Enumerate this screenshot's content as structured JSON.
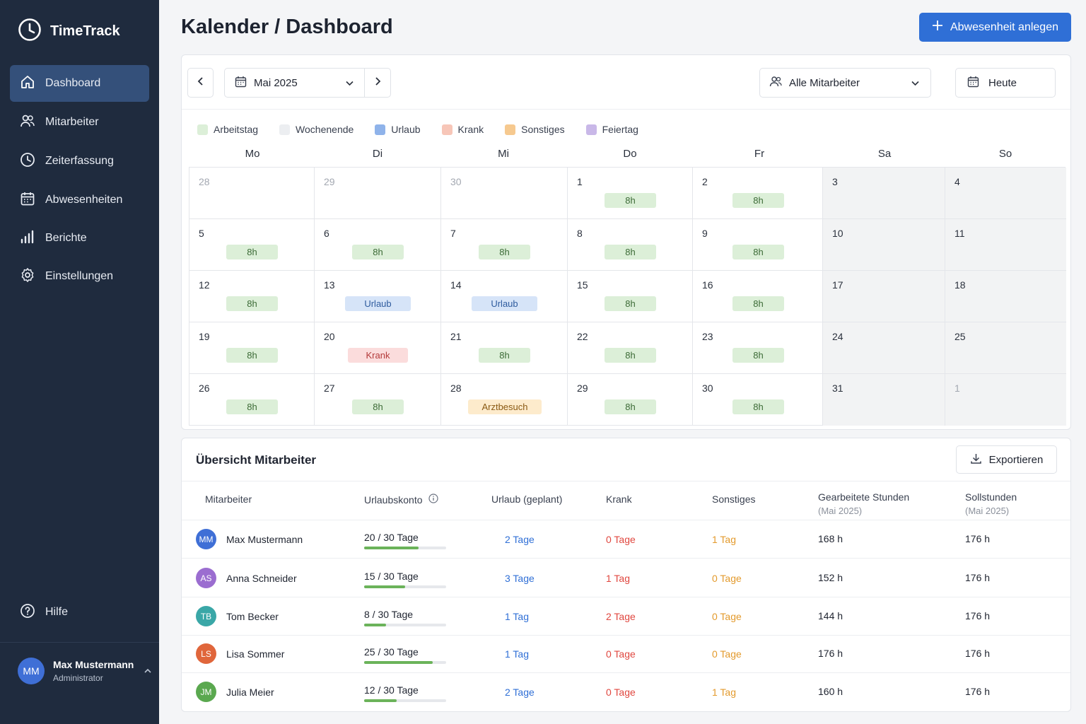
{
  "app": {
    "name": "TimeTrack"
  },
  "sidebar": {
    "items": [
      {
        "label": "Dashboard",
        "icon": "home-icon",
        "active": true
      },
      {
        "label": "Mitarbeiter",
        "icon": "users-icon",
        "active": false
      },
      {
        "label": "Zeiterfassung",
        "icon": "clock-icon",
        "active": false
      },
      {
        "label": "Abwesenheiten",
        "icon": "calendar-icon",
        "active": false
      },
      {
        "label": "Berichte",
        "icon": "bar-chart-icon",
        "active": false
      },
      {
        "label": "Einstellungen",
        "icon": "gear-icon",
        "active": false
      }
    ],
    "help_label": "Hilfe",
    "user": {
      "name": "Max Mustermann",
      "role": "Administrator",
      "initials": "MM"
    }
  },
  "header": {
    "title": "Kalender / Dashboard",
    "primary_action": "Abwesenheit anlegen"
  },
  "calendar": {
    "month_label": "Mai 2025",
    "employee_filter": "Alle Mitarbeiter",
    "today_label": "Heute",
    "legend": [
      {
        "label": "Arbeitstag",
        "color": "#dcefd8"
      },
      {
        "label": "Wochenende",
        "color": "#eceef1"
      },
      {
        "label": "Urlaub",
        "color": "#8fb3ea"
      },
      {
        "label": "Krank",
        "color": "#f7c6b8"
      },
      {
        "label": "Sonstiges",
        "color": "#f6c98f"
      },
      {
        "label": "Feiertag",
        "color": "#c9b8e8"
      }
    ],
    "weekdays": [
      "Mo",
      "Di",
      "Mi",
      "Do",
      "Fr",
      "Sa",
      "So"
    ],
    "weeks": [
      [
        {
          "d": "28",
          "m": true
        },
        {
          "d": "29",
          "m": true
        },
        {
          "d": "30",
          "m": true
        },
        {
          "d": "1",
          "e": "8h",
          "t": "work"
        },
        {
          "d": "2",
          "e": "8h",
          "t": "work"
        },
        {
          "d": "3"
        },
        {
          "d": "4"
        }
      ],
      [
        {
          "d": "5",
          "e": "8h",
          "t": "work"
        },
        {
          "d": "6",
          "e": "8h",
          "t": "work"
        },
        {
          "d": "7",
          "e": "8h",
          "t": "work"
        },
        {
          "d": "8",
          "e": "8h",
          "t": "work"
        },
        {
          "d": "9",
          "e": "8h",
          "t": "work"
        },
        {
          "d": "10"
        },
        {
          "d": "11"
        }
      ],
      [
        {
          "d": "12",
          "e": "8h",
          "t": "work"
        },
        {
          "d": "13",
          "e": "Urlaub",
          "t": "vac"
        },
        {
          "d": "14",
          "e": "Urlaub",
          "t": "vac"
        },
        {
          "d": "15",
          "e": "8h",
          "t": "work"
        },
        {
          "d": "16",
          "e": "8h",
          "t": "work"
        },
        {
          "d": "17"
        },
        {
          "d": "18"
        }
      ],
      [
        {
          "d": "19",
          "e": "8h",
          "t": "work"
        },
        {
          "d": "20",
          "e": "Krank",
          "t": "sick"
        },
        {
          "d": "21",
          "e": "8h",
          "t": "work"
        },
        {
          "d": "22",
          "e": "8h",
          "t": "work"
        },
        {
          "d": "23",
          "e": "8h",
          "t": "work"
        },
        {
          "d": "24"
        },
        {
          "d": "25"
        }
      ],
      [
        {
          "d": "26",
          "e": "8h",
          "t": "work"
        },
        {
          "d": "27",
          "e": "8h",
          "t": "work"
        },
        {
          "d": "28",
          "e": "Arztbesuch",
          "t": "other"
        },
        {
          "d": "29",
          "e": "8h",
          "t": "work"
        },
        {
          "d": "30",
          "e": "8h",
          "t": "work"
        },
        {
          "d": "31"
        },
        {
          "d": "1",
          "m": true
        }
      ]
    ]
  },
  "overview": {
    "title": "Übersicht Mitarbeiter",
    "export_label": "Exportieren",
    "columns": {
      "employee": "Mitarbeiter",
      "vacation_account": "Urlaubskonto",
      "vacation_planned": "Urlaub (geplant)",
      "sick": "Krank",
      "other": "Sonstiges",
      "worked": "Gearbeitete Stunden",
      "worked_sub": "(Mai 2025)",
      "target": "Sollstunden",
      "target_sub": "(Mai 2025)"
    },
    "rows": [
      {
        "initials": "MM",
        "color": "#3f6fd6",
        "name": "Max Mustermann",
        "account": "20 / 30 Tage",
        "used": 0.667,
        "planned": "2 Tage",
        "sick": "0 Tage",
        "other": "1 Tag",
        "worked": "168 h",
        "target": "176 h"
      },
      {
        "initials": "AS",
        "color": "#9b6dd0",
        "name": "Anna Schneider",
        "account": "15 / 30 Tage",
        "used": 0.5,
        "planned": "3 Tage",
        "sick": "1 Tag",
        "other": "0 Tage",
        "worked": "152 h",
        "target": "176 h"
      },
      {
        "initials": "TB",
        "color": "#3aa7a7",
        "name": "Tom Becker",
        "account": "8 / 30 Tage",
        "used": 0.267,
        "planned": "1 Tag",
        "sick": "2 Tage",
        "other": "0 Tage",
        "worked": "144 h",
        "target": "176 h"
      },
      {
        "initials": "LS",
        "color": "#e0663b",
        "name": "Lisa Sommer",
        "account": "25 / 30 Tage",
        "used": 0.833,
        "planned": "1 Tag",
        "sick": "0 Tage",
        "other": "0 Tage",
        "worked": "176 h",
        "target": "176 h"
      },
      {
        "initials": "JM",
        "color": "#5aa84f",
        "name": "Julia Meier",
        "account": "12 / 30 Tage",
        "used": 0.4,
        "planned": "2 Tage",
        "sick": "0 Tage",
        "other": "1 Tag",
        "worked": "160 h",
        "target": "176 h"
      }
    ]
  }
}
